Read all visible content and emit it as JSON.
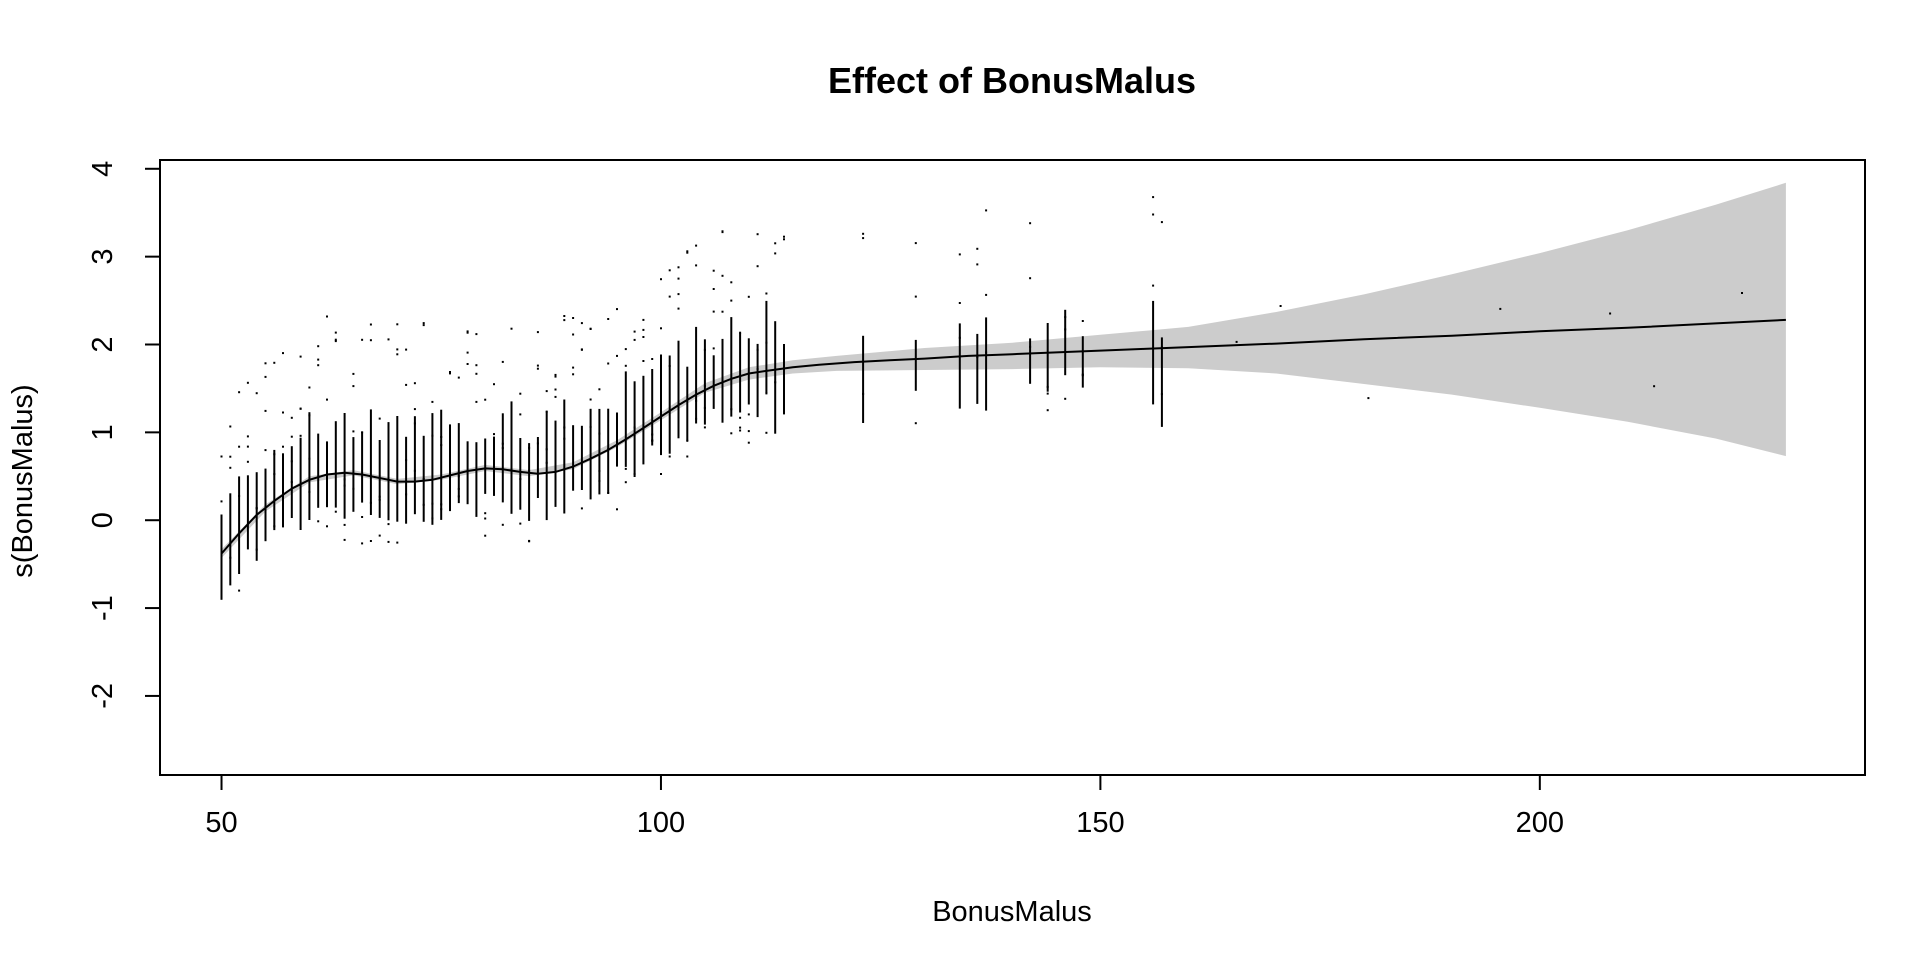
{
  "chart_data": {
    "type": "line",
    "title": "Effect of BonusMalus",
    "xlabel": "BonusMalus",
    "ylabel": "s(BonusMalus)",
    "xlim": [
      43,
      237
    ],
    "ylim": [
      -2.9,
      4.1
    ],
    "x_ticks": [
      "50",
      "100",
      "150",
      "200"
    ],
    "y_ticks": [
      "-2",
      "-1",
      "0",
      "1",
      "2",
      "3",
      "4"
    ],
    "grid": false,
    "legend": "none",
    "colors": {
      "line": "#000000",
      "band": "#cccccc",
      "residuals": "#000000"
    },
    "series": [
      {
        "type": "line",
        "x": [
          50,
          52,
          54,
          56,
          58,
          60,
          62,
          64,
          66,
          68,
          70,
          72,
          74,
          76,
          78,
          80,
          82,
          84,
          86,
          88,
          90,
          92,
          94,
          96,
          98,
          100,
          102,
          104,
          106,
          108,
          110,
          112,
          115,
          118,
          122,
          126,
          130,
          135,
          140,
          145,
          150,
          155,
          160,
          170,
          180,
          190,
          200,
          210,
          220,
          228
        ],
        "y": [
          -0.38,
          -0.15,
          0.06,
          0.22,
          0.36,
          0.46,
          0.52,
          0.54,
          0.52,
          0.48,
          0.44,
          0.44,
          0.46,
          0.51,
          0.56,
          0.59,
          0.58,
          0.55,
          0.53,
          0.55,
          0.61,
          0.7,
          0.8,
          0.92,
          1.05,
          1.18,
          1.31,
          1.43,
          1.53,
          1.61,
          1.67,
          1.7,
          1.74,
          1.77,
          1.8,
          1.82,
          1.84,
          1.87,
          1.89,
          1.91,
          1.93,
          1.95,
          1.97,
          2.01,
          2.06,
          2.1,
          2.15,
          2.19,
          2.24,
          2.28
        ]
      },
      {
        "type": "band",
        "x": [
          50,
          55,
          60,
          65,
          70,
          75,
          80,
          85,
          90,
          95,
          100,
          105,
          110,
          115,
          120,
          130,
          140,
          150,
          160,
          170,
          180,
          190,
          200,
          210,
          220,
          228
        ],
        "lower": [
          -0.43,
          0.1,
          0.43,
          0.51,
          0.41,
          0.46,
          0.56,
          0.5,
          0.58,
          0.83,
          1.14,
          1.45,
          1.6,
          1.67,
          1.7,
          1.71,
          1.72,
          1.74,
          1.73,
          1.67,
          1.55,
          1.43,
          1.28,
          1.12,
          0.93,
          0.73
        ],
        "upper": [
          -0.33,
          0.18,
          0.5,
          0.57,
          0.47,
          0.52,
          0.63,
          0.57,
          0.66,
          0.91,
          1.23,
          1.56,
          1.74,
          1.82,
          1.87,
          1.96,
          2.02,
          2.11,
          2.2,
          2.37,
          2.57,
          2.8,
          3.04,
          3.3,
          3.59,
          3.84
        ]
      }
    ]
  }
}
